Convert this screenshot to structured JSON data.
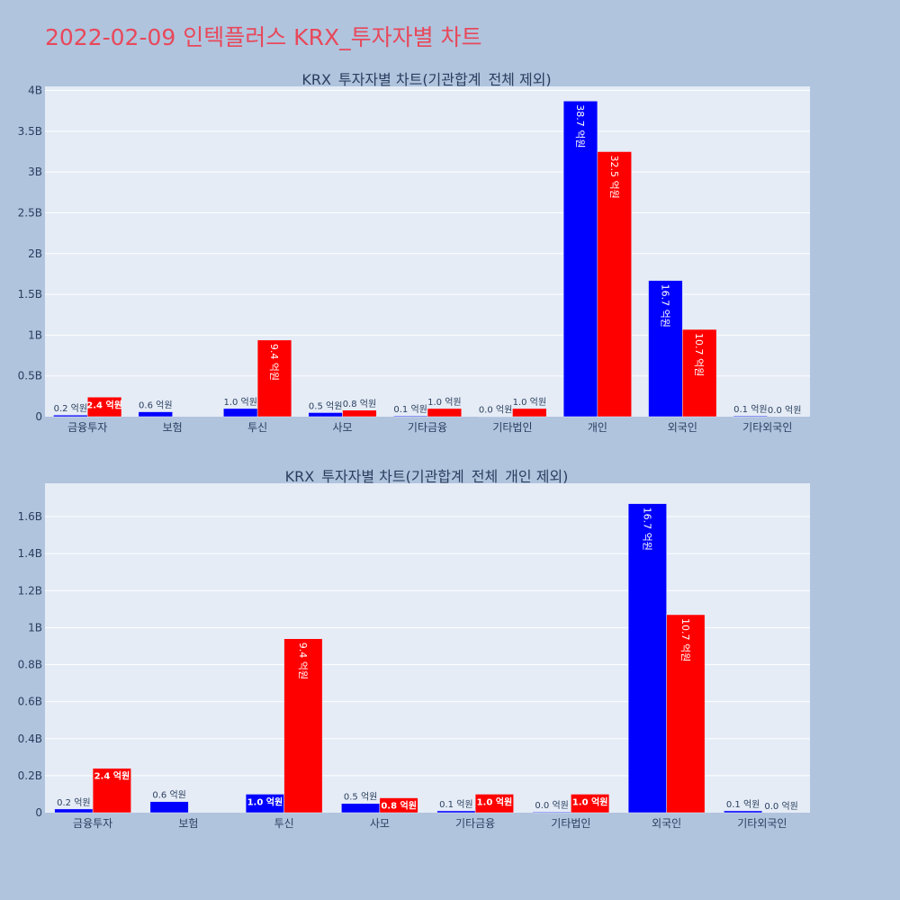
{
  "page": {
    "title": "2022-02-09 인텍플러스 KRX_투자자별 차트"
  },
  "chart_data": [
    {
      "type": "bar",
      "title": "KRX_투자자별 차트(기관합계_전체 제외)",
      "categories": [
        "금융투자",
        "보험",
        "투신",
        "사모",
        "기타금융",
        "기타법인",
        "개인",
        "외국인",
        "기타외국인"
      ],
      "series": [
        {
          "color": "#0000ff",
          "values": [
            0.02,
            0.06,
            0.1,
            0.05,
            0.01,
            0.004,
            3.87,
            1.67,
            0.01
          ],
          "labels": [
            "0.2 억원",
            "0.6 억원",
            "1.0 억원",
            "0.5 억원",
            "0.1 억원",
            "0.0 억원",
            "38.7 억원",
            "16.7 억원",
            "0.1 억원"
          ]
        },
        {
          "color": "#ff0000",
          "values": [
            0.24,
            0.0,
            0.94,
            0.08,
            0.1,
            0.1,
            3.25,
            1.07,
            0.0
          ],
          "labels": [
            "2.4 억원",
            "",
            "9.4 억원",
            "0.8 억원",
            "1.0 억원",
            "1.0 억원",
            "32.5 억원",
            "10.7 억원",
            "0.0 억원"
          ]
        }
      ],
      "ylim": [
        0,
        4.05
      ],
      "yticks": [
        0,
        0.5,
        1,
        1.5,
        2,
        2.5,
        3,
        3.5,
        4
      ],
      "ytick_labels": [
        "0",
        "0.5B",
        "1B",
        "1.5B",
        "2B",
        "2.5B",
        "3B",
        "3.5B",
        "4B"
      ],
      "grid": true
    },
    {
      "type": "bar",
      "title": "KRX_투자자별 차트(기관합계_전체_개인 제외)",
      "categories": [
        "금융투자",
        "보험",
        "투신",
        "사모",
        "기타금융",
        "기타법인",
        "외국인",
        "기타외국인"
      ],
      "series": [
        {
          "color": "#0000ff",
          "values": [
            0.02,
            0.06,
            0.1,
            0.05,
            0.01,
            0.004,
            1.67,
            0.01
          ],
          "labels": [
            "0.2 억원",
            "0.6 억원",
            "1.0 억원",
            "0.5 억원",
            "0.1 억원",
            "0.0 억원",
            "16.7 억원",
            "0.1 억원"
          ]
        },
        {
          "color": "#ff0000",
          "values": [
            0.24,
            0.0,
            0.94,
            0.08,
            0.1,
            0.1,
            1.07,
            0.0
          ],
          "labels": [
            "2.4 억원",
            "",
            "9.4 억원",
            "0.8 억원",
            "1.0 억원",
            "1.0 억원",
            "10.7 억원",
            "0.0 억원"
          ]
        }
      ],
      "ylim": [
        0,
        1.78
      ],
      "yticks": [
        0,
        0.2,
        0.4,
        0.6,
        0.8,
        1.0,
        1.2,
        1.4,
        1.6
      ],
      "ytick_labels": [
        "0",
        "0.2B",
        "0.4B",
        "0.6B",
        "0.8B",
        "1B",
        "1.2B",
        "1.4B",
        "1.6B"
      ],
      "grid": true
    }
  ]
}
